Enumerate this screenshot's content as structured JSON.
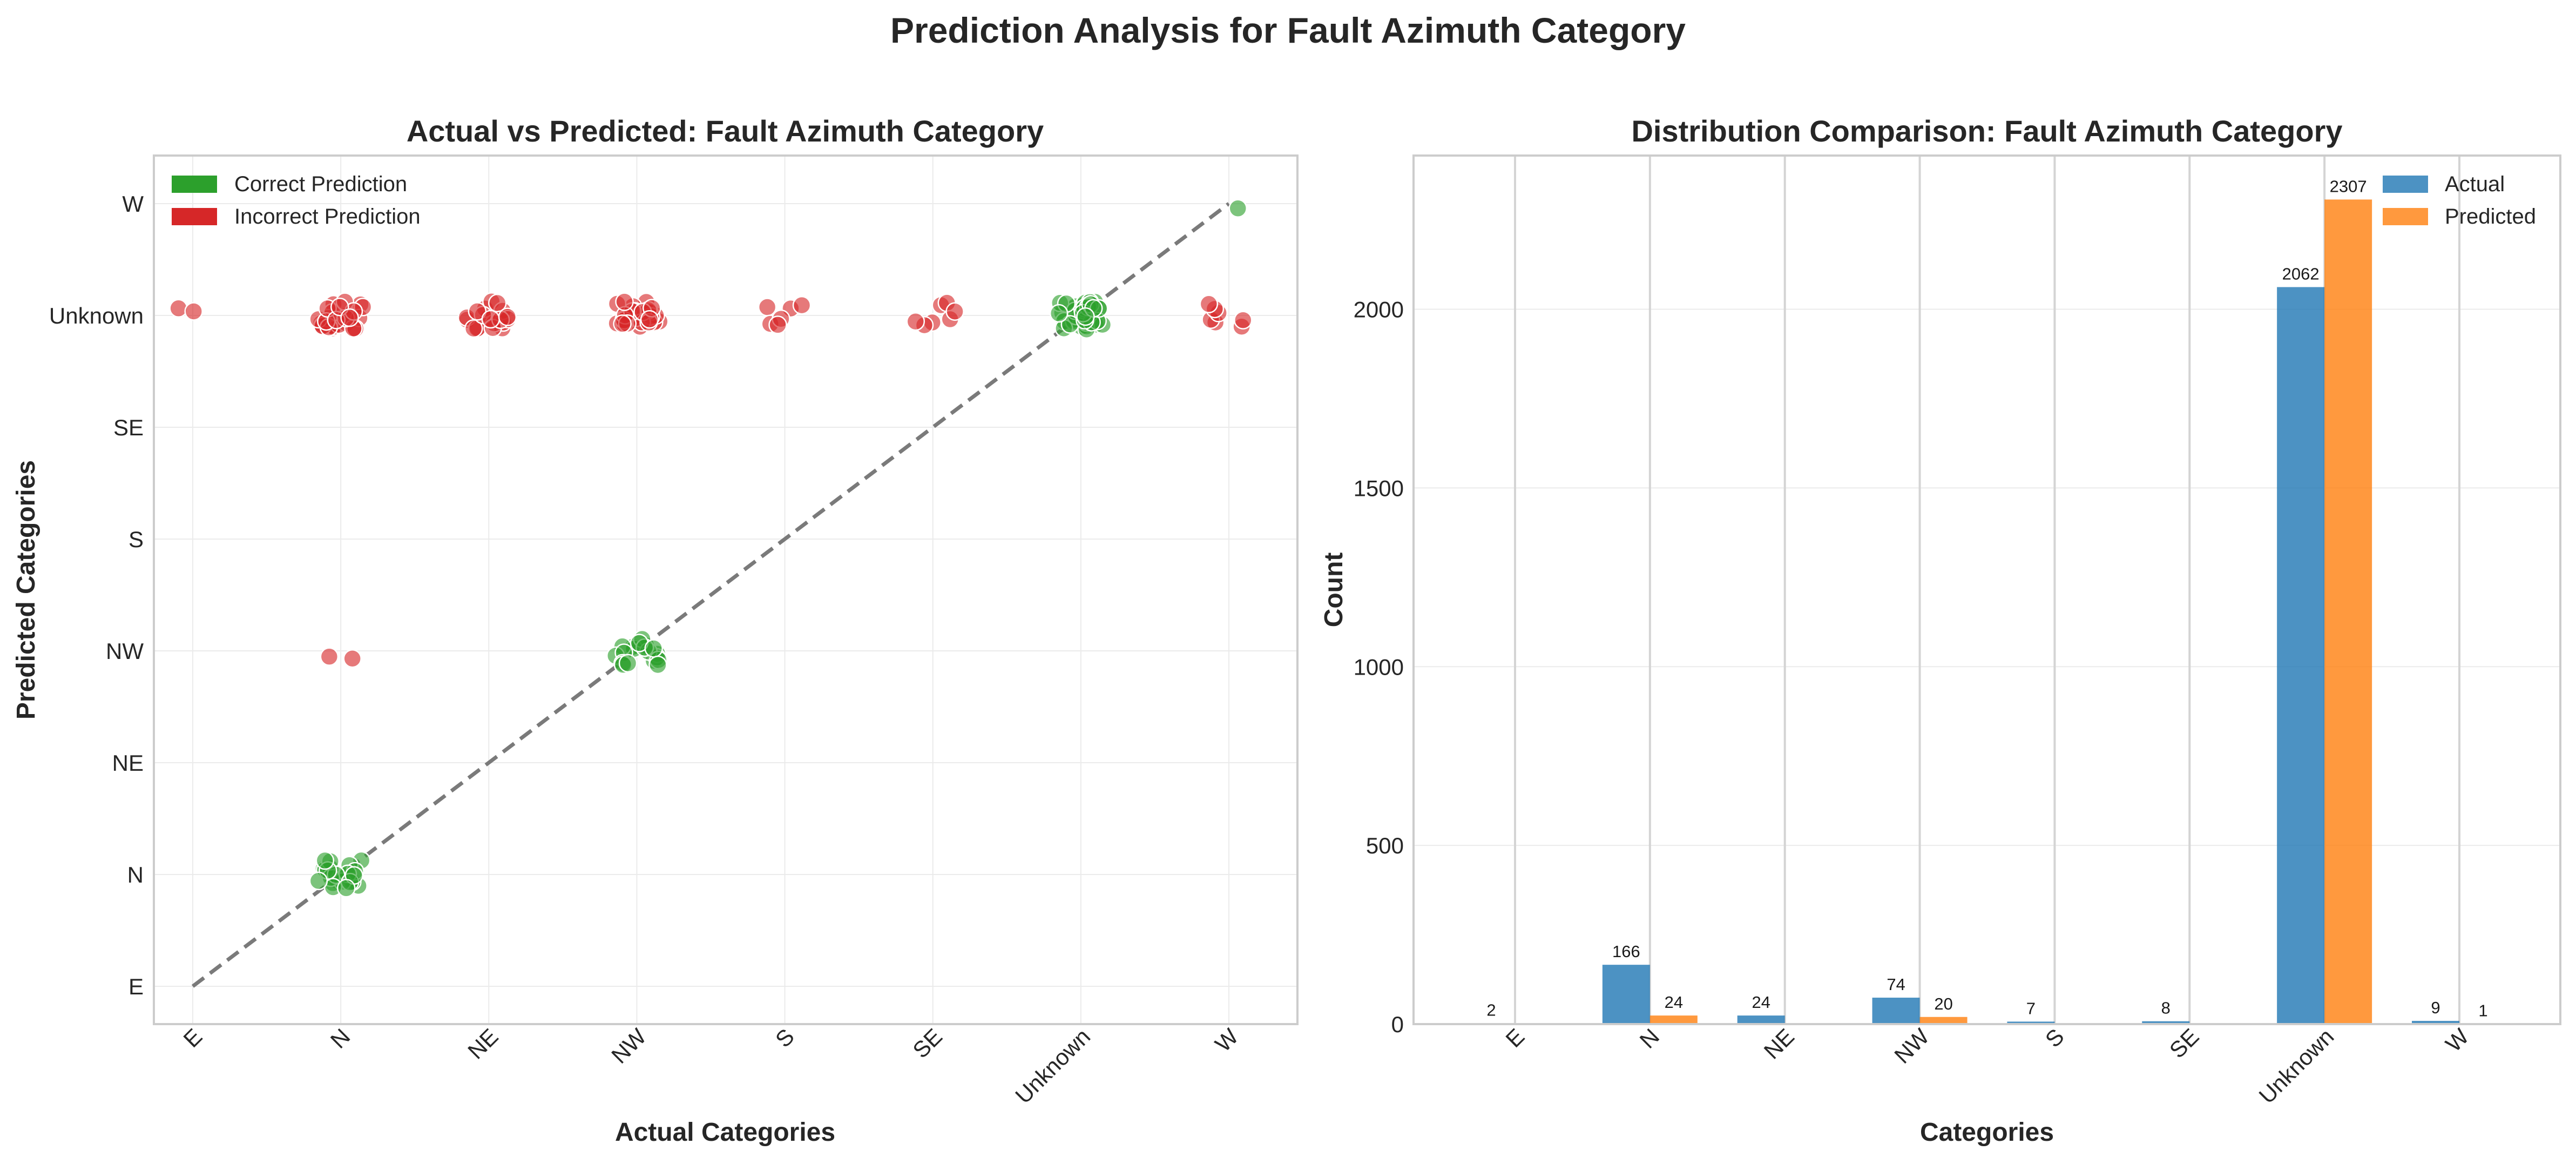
{
  "figure": {
    "suptitle": "Prediction Analysis for Fault Azimuth Category"
  },
  "chart_data": [
    {
      "type": "scatter",
      "title": "Actual vs Predicted: Fault Azimuth Category",
      "xlabel": "Actual Categories",
      "ylabel": "Predicted Categories",
      "categories": [
        "E",
        "N",
        "NE",
        "NW",
        "S",
        "SE",
        "Unknown",
        "W"
      ],
      "grid": true,
      "legend_position": "top-left",
      "legend": [
        {
          "label": "Correct Prediction",
          "color": "#2ca02c"
        },
        {
          "label": "Incorrect Prediction",
          "color": "#d62728"
        }
      ],
      "diagonal_reference": true,
      "groups": [
        {
          "actual": "E",
          "predicted": "Unknown",
          "correct": false,
          "points_shown": 2
        },
        {
          "actual": "N",
          "predicted": "Unknown",
          "correct": false,
          "points_shown": 30
        },
        {
          "actual": "N",
          "predicted": "NW",
          "correct": false,
          "points_shown": 2
        },
        {
          "actual": "N",
          "predicted": "N",
          "correct": true,
          "points_shown": 24
        },
        {
          "actual": "NE",
          "predicted": "Unknown",
          "correct": false,
          "points_shown": 20
        },
        {
          "actual": "NW",
          "predicted": "Unknown",
          "correct": false,
          "points_shown": 30
        },
        {
          "actual": "NW",
          "predicted": "NW",
          "correct": true,
          "points_shown": 20
        },
        {
          "actual": "S",
          "predicted": "Unknown",
          "correct": false,
          "points_shown": 6
        },
        {
          "actual": "SE",
          "predicted": "Unknown",
          "correct": false,
          "points_shown": 7
        },
        {
          "actual": "Unknown",
          "predicted": "Unknown",
          "correct": true,
          "points_shown": 40
        },
        {
          "actual": "W",
          "predicted": "Unknown",
          "correct": false,
          "points_shown": 7
        },
        {
          "actual": "W",
          "predicted": "W",
          "correct": true,
          "points_shown": 1
        }
      ]
    },
    {
      "type": "bar",
      "title": "Distribution Comparison: Fault Azimuth Category",
      "xlabel": "Categories",
      "ylabel": "Count",
      "categories": [
        "E",
        "N",
        "NE",
        "NW",
        "S",
        "SE",
        "Unknown",
        "W"
      ],
      "ylim": [
        0,
        2430
      ],
      "yticks": [
        0,
        500,
        1000,
        1500,
        2000
      ],
      "grid": true,
      "legend_position": "top-right",
      "series": [
        {
          "name": "Actual",
          "color": "#1f77b4",
          "values": [
            2,
            166,
            24,
            74,
            7,
            8,
            2062,
            9
          ],
          "labels": [
            "2",
            "166",
            "24",
            "74",
            "7",
            "8",
            "2062",
            "9"
          ]
        },
        {
          "name": "Predicted",
          "color": "#ff7f0e",
          "values": [
            0,
            24,
            0,
            20,
            0,
            0,
            2307,
            1
          ],
          "labels": [
            "",
            "24",
            "",
            "20",
            "",
            "",
            "2307",
            "1"
          ]
        }
      ]
    }
  ]
}
